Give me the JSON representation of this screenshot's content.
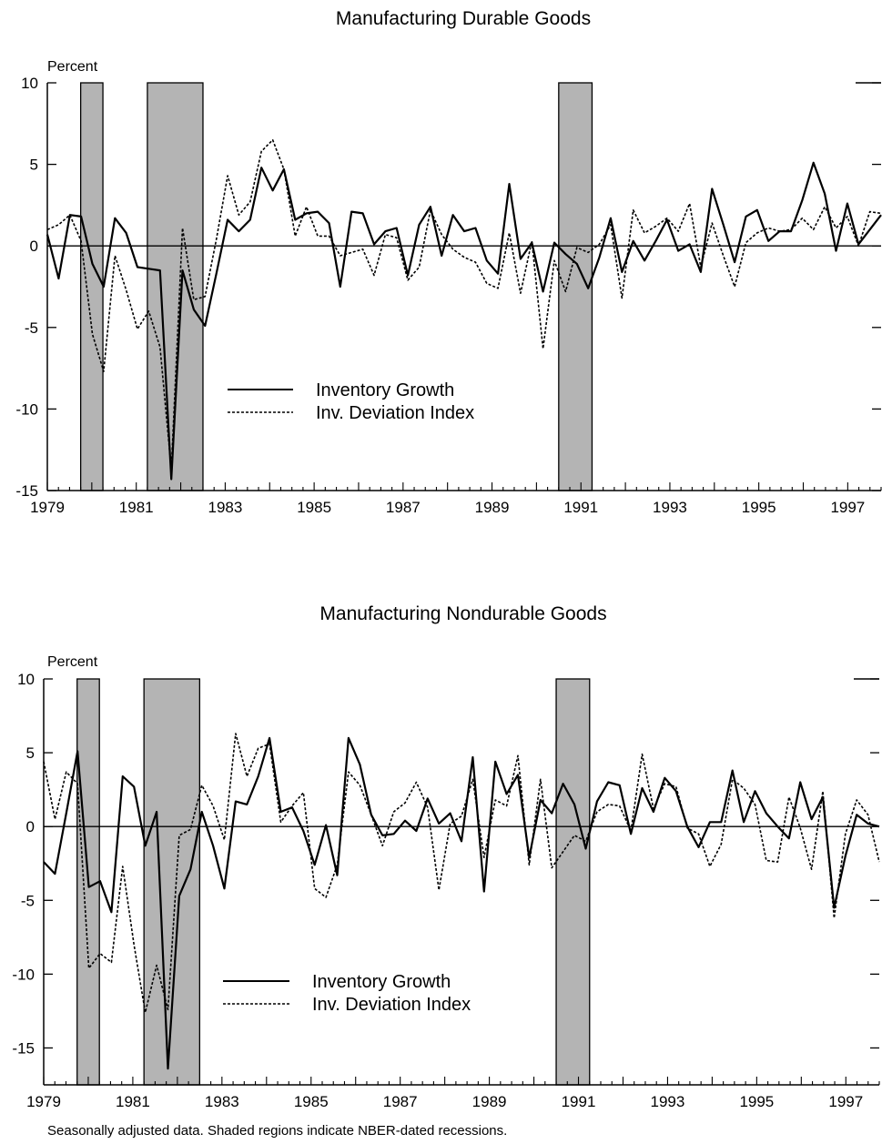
{
  "chart_data": [
    {
      "type": "line",
      "title": "Manufacturing Durable Goods",
      "unit_label": "Percent",
      "ylim": [
        -15,
        10
      ],
      "yticks": [
        10,
        5,
        0,
        -5,
        -10,
        -15
      ],
      "xlim": [
        1979.0,
        1997.75
      ],
      "xticks": [
        1979,
        1981,
        1983,
        1985,
        1987,
        1989,
        1991,
        1993,
        1995,
        1997
      ],
      "grid": false,
      "zero_line": true,
      "legend_position": "lower-center",
      "recessions": [
        [
          1979.75,
          1980.25
        ],
        [
          1981.25,
          1982.5
        ],
        [
          1990.5,
          1991.25
        ]
      ],
      "series": [
        {
          "name": "Inventory Growth",
          "style": "solid",
          "values": [
            0.7,
            -2.0,
            1.9,
            1.8,
            -1.1,
            -2.5,
            1.7,
            0.8,
            -1.3,
            -1.4,
            -1.5,
            -14.3,
            -1.5,
            -3.9,
            -4.9,
            -1.7,
            1.6,
            0.9,
            1.6,
            4.8,
            3.4,
            4.7,
            1.6,
            2.0,
            2.1,
            1.4,
            -2.5,
            2.1,
            2.0,
            0.1,
            0.9,
            1.1,
            -1.8,
            1.3,
            2.4,
            -0.6,
            1.9,
            0.9,
            1.1,
            -0.9,
            -1.7,
            3.8,
            -0.8,
            0.2,
            -2.8,
            0.2,
            -0.5,
            -1.1,
            -2.6,
            -0.7,
            1.7,
            -1.6,
            0.3,
            -0.9,
            0.3,
            1.6,
            -0.3,
            0.1,
            -1.6,
            3.5,
            1.3,
            -1.0,
            1.8,
            2.2,
            0.3,
            0.9,
            0.9,
            2.8,
            5.1,
            3.2,
            -0.3,
            2.6,
            0.1,
            1.0,
            1.9
          ]
        },
        {
          "name": "Inv. Deviation Index",
          "style": "dotted",
          "values": [
            1.0,
            1.3,
            1.9,
            0.3,
            -5.4,
            -7.7,
            -0.6,
            -2.7,
            -5.1,
            -4.0,
            -6.2,
            -13.7,
            1.1,
            -3.3,
            -3.1,
            0.4,
            4.3,
            1.9,
            2.7,
            5.8,
            6.5,
            4.7,
            0.6,
            2.4,
            0.6,
            0.6,
            -0.6,
            -0.4,
            -0.2,
            -1.8,
            0.7,
            0.5,
            -2.1,
            -1.3,
            2.2,
            0.7,
            -0.2,
            -0.7,
            -1.0,
            -2.3,
            -2.6,
            0.8,
            -2.9,
            0.3,
            -6.3,
            -0.9,
            -2.8,
            -0.1,
            -0.4,
            0.1,
            1.3,
            -3.2,
            2.2,
            0.8,
            1.2,
            1.7,
            0.9,
            2.6,
            -1.3,
            1.4,
            -0.6,
            -2.5,
            0.2,
            0.8,
            1.1,
            0.9,
            1.0,
            1.7,
            1.0,
            2.4,
            1.1,
            1.8,
            0.0,
            2.1,
            2.0
          ]
        }
      ]
    },
    {
      "type": "line",
      "title": "Manufacturing Nondurable Goods",
      "unit_label": "Percent",
      "ylim": [
        -17.5,
        10
      ],
      "yticks": [
        10,
        5,
        0,
        -5,
        -10,
        -15
      ],
      "xlim": [
        1979.0,
        1997.75
      ],
      "xticks": [
        1979,
        1981,
        1983,
        1985,
        1987,
        1989,
        1991,
        1993,
        1995,
        1997
      ],
      "grid": false,
      "zero_line": true,
      "legend_position": "lower-center",
      "recessions": [
        [
          1979.75,
          1980.25
        ],
        [
          1981.25,
          1982.5
        ],
        [
          1990.5,
          1991.25
        ]
      ],
      "series": [
        {
          "name": "Inventory Growth",
          "style": "solid",
          "values": [
            -2.4,
            -3.2,
            0.9,
            5.1,
            -4.1,
            -3.7,
            -5.8,
            3.4,
            2.7,
            -1.3,
            1.0,
            -16.4,
            -4.7,
            -2.9,
            1.0,
            -1.3,
            -4.2,
            1.7,
            1.5,
            3.4,
            6.0,
            1.0,
            1.3,
            -0.3,
            -2.6,
            0.1,
            -3.3,
            6.0,
            4.2,
            0.8,
            -0.6,
            -0.5,
            0.4,
            -0.3,
            1.9,
            0.2,
            0.9,
            -1.0,
            4.7,
            -4.4,
            4.4,
            2.2,
            3.5,
            -2.1,
            1.8,
            0.9,
            2.9,
            1.5,
            -1.5,
            1.7,
            3.0,
            2.8,
            -0.5,
            2.6,
            1.0,
            3.3,
            2.4,
            0.0,
            -1.4,
            0.3,
            0.3,
            3.8,
            0.3,
            2.4,
            0.9,
            0.0,
            -0.8,
            3.0,
            0.5,
            2.0,
            -5.5,
            -2.0,
            0.8,
            0.2,
            0.0
          ]
        },
        {
          "name": "Inv. Deviation Index",
          "style": "dotted",
          "values": [
            4.4,
            0.5,
            3.7,
            2.9,
            -9.6,
            -8.6,
            -9.2,
            -2.7,
            -8.0,
            -12.6,
            -9.4,
            -12.4,
            -0.6,
            -0.2,
            2.8,
            1.4,
            -0.9,
            6.3,
            3.4,
            5.3,
            5.6,
            0.3,
            1.4,
            2.3,
            -4.2,
            -4.8,
            -2.6,
            3.7,
            2.8,
            0.8,
            -1.3,
            1.0,
            1.6,
            3.0,
            1.3,
            -4.3,
            0.2,
            0.7,
            3.2,
            -2.1,
            1.8,
            1.4,
            4.8,
            -2.6,
            3.2,
            -2.8,
            -1.7,
            -0.6,
            -1.0,
            1.0,
            1.5,
            1.4,
            -0.3,
            4.9,
            1.2,
            2.9,
            2.7,
            -0.1,
            -0.5,
            -2.7,
            -1.2,
            3.2,
            2.6,
            1.5,
            -2.3,
            -2.4,
            2.0,
            -0.1,
            -2.9,
            2.4,
            -6.2,
            -0.5,
            1.8,
            0.8,
            -2.4
          ]
        }
      ]
    }
  ],
  "footnote": "Seasonally adjusted data. Shaded regions indicate NBER-dated recessions.",
  "colors": {
    "line": "#000000",
    "recession": "#b4b4b4"
  }
}
